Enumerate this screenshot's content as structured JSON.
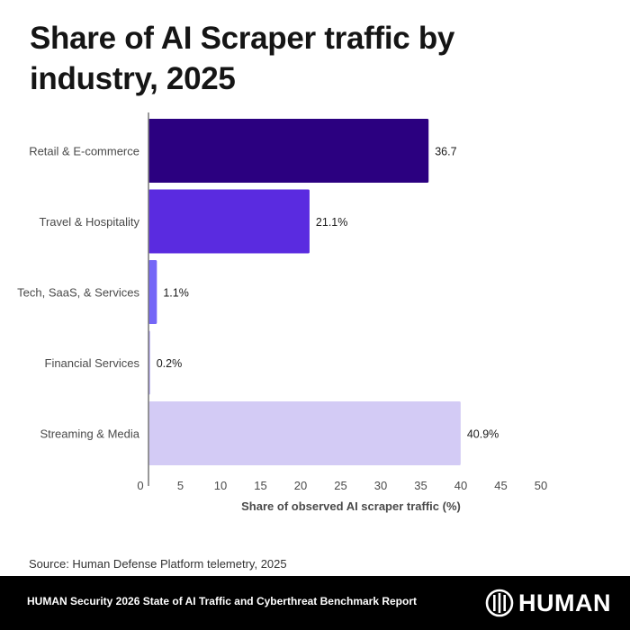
{
  "title": "Share of AI Scraper traffic by industry, 2025",
  "chart_data": {
    "type": "bar",
    "orientation": "horizontal",
    "title": "Share of AI Scraper traffic by industry, 2025",
    "xlabel": "Share of observed AI scraper traffic (%)",
    "ylabel": "",
    "xlim": [
      0,
      50
    ],
    "xticks": [
      0,
      5,
      10,
      15,
      20,
      25,
      30,
      35,
      40,
      45,
      50
    ],
    "grid": false,
    "categories": [
      "Retail & E-commerce",
      "Travel & Hospitality",
      "Tech, SaaS, & Services",
      "Financial Services",
      "Streaming & Media"
    ],
    "values": [
      36.7,
      21.1,
      1.1,
      0.2,
      40.9
    ],
    "value_labels": [
      "36.7",
      "21.1%",
      "1.1%",
      "0.2%",
      "40.9%"
    ],
    "colors": [
      "#2b0080",
      "#5a2be0",
      "#7466f7",
      "#a89cf0",
      "#d3cbf5"
    ]
  },
  "source": "Source: Human Defense Platform telemetry, 2025",
  "footer": {
    "report": "HUMAN Security 2026 State of AI Traffic and Cyberthreat Benchmark Report",
    "logo_icon": "human-logo-icon",
    "logo_text": "HUMAN"
  }
}
